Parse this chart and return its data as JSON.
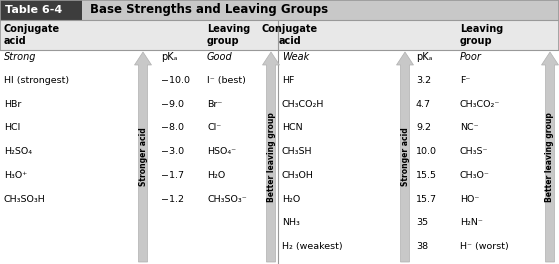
{
  "title_label": "Table 6-4",
  "title_text": "Base Strengths and Leaving Groups",
  "left_section": {
    "header_acid": "Conjugate\nacid",
    "header_leaving": "Leaving\ngroup",
    "label_strong": "Strong",
    "label_good": "Good",
    "pka_label": "pKₐ",
    "acids": [
      "HI (strongest)",
      "HBr",
      "HCl",
      "H₂SO₄",
      "H₃O⁺",
      "CH₃SO₃H"
    ],
    "pka_vals": [
      "−10.0",
      "−9.0",
      "−8.0",
      "−3.0",
      "−1.7",
      "−1.2"
    ],
    "leaving": [
      "I⁻ (best)",
      "Br⁻",
      "Cl⁻",
      "HSO₄⁻",
      "H₂O",
      "CH₃SO₃⁻"
    ]
  },
  "right_section": {
    "header_acid": "Conjugate\nacid",
    "header_leaving": "Leaving\ngroup",
    "label_weak": "Weak",
    "label_poor": "Poor",
    "pka_label": "pKₐ",
    "acids": [
      "HF",
      "CH₃CO₂H",
      "HCN",
      "CH₃SH",
      "CH₃OH",
      "H₂O",
      "NH₃",
      "H₂ (weakest)"
    ],
    "pka_vals": [
      "3.2",
      "4.7",
      "9.2",
      "10.0",
      "15.5",
      "15.7",
      "35",
      "38"
    ],
    "leaving": [
      "F⁻",
      "CH₃CO₂⁻",
      "NC⁻",
      "CH₃S⁻",
      "CH₃O⁻",
      "HO⁻",
      "H₂N⁻",
      "H⁻ (worst)"
    ]
  },
  "arrow_stronger": "Stronger acid",
  "arrow_leaving": "Better leaving group",
  "title_bar_color": "#3d3d3d",
  "title_bar_text_color": "#ffffff",
  "subheader_bar_color": "#c8c8c8",
  "header_row_color": "#e8e8e8",
  "body_bg": "#f8f8f8",
  "arrow_fill": "#c0c0c0",
  "arrow_edge": "#a0a0a0",
  "border_color": "#999999",
  "divider_color": "#999999"
}
